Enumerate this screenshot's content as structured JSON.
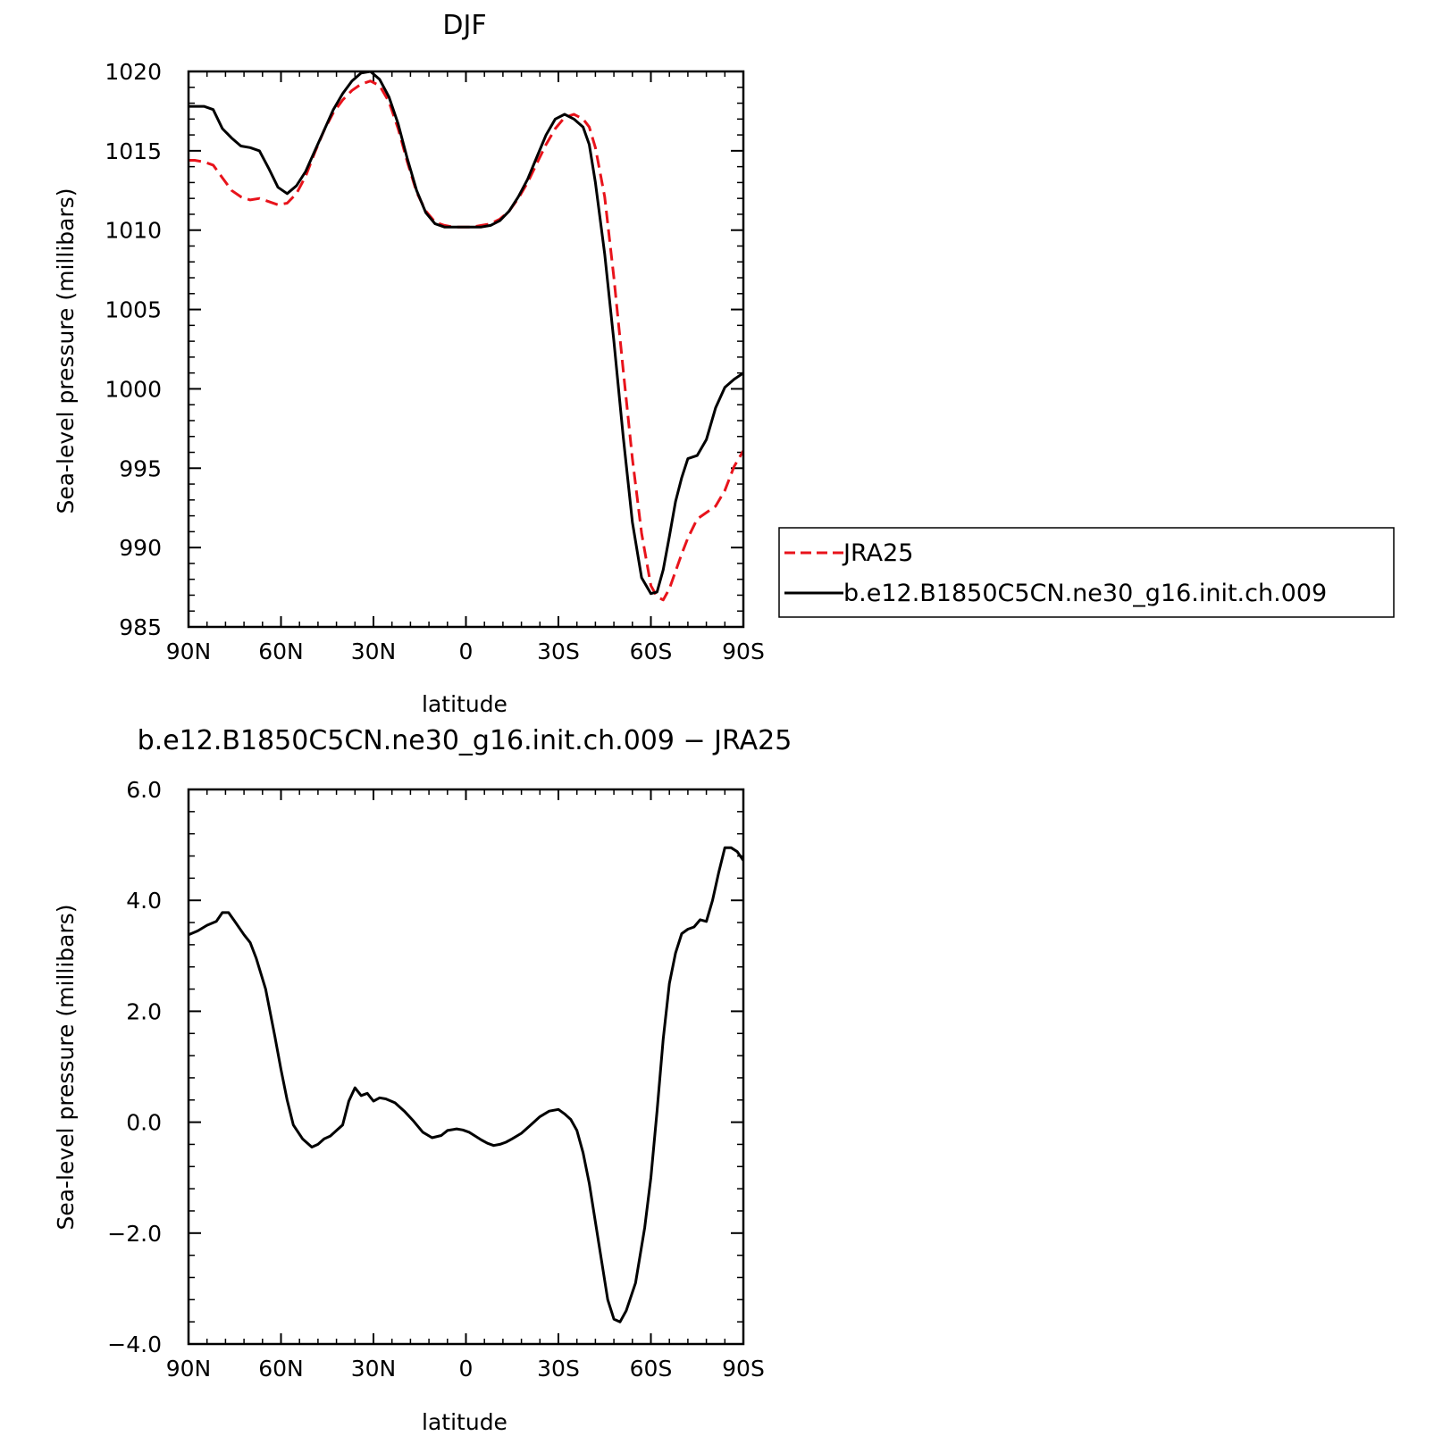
{
  "chart_data": [
    {
      "type": "line",
      "title": "DJF",
      "xlabel": "latitude",
      "ylabel": "Sea-level pressure (millibars)",
      "xlim": [
        90,
        -90
      ],
      "ylim": [
        985,
        1020
      ],
      "x_ticks": [
        {
          "value": 90,
          "label": "90N"
        },
        {
          "value": 60,
          "label": "60N"
        },
        {
          "value": 30,
          "label": "30N"
        },
        {
          "value": 0,
          "label": "0"
        },
        {
          "value": -30,
          "label": "30S"
        },
        {
          "value": -60,
          "label": "60S"
        },
        {
          "value": -90,
          "label": "90S"
        }
      ],
      "y_ticks": [
        {
          "value": 1020,
          "label": "1020"
        },
        {
          "value": 1015,
          "label": "1015"
        },
        {
          "value": 1010,
          "label": "1010"
        },
        {
          "value": 1005,
          "label": "1005"
        },
        {
          "value": 1000,
          "label": "1000"
        },
        {
          "value": 995,
          "label": "995"
        },
        {
          "value": 990,
          "label": "990"
        },
        {
          "value": 985,
          "label": "985"
        }
      ],
      "legend": {
        "position": "right"
      },
      "series": [
        {
          "name": "JRA25",
          "color": "#e8131b",
          "dash": true,
          "x": [
            90,
            88,
            85,
            82,
            79,
            76,
            73,
            70,
            67,
            64,
            61,
            58,
            55,
            52,
            49,
            46,
            43,
            40,
            37,
            34,
            31,
            28,
            25,
            22,
            19,
            16,
            13,
            10,
            7,
            4,
            1,
            -2,
            -5,
            -8,
            -11,
            -14,
            -17,
            -20,
            -23,
            -26,
            -29,
            -32,
            -35,
            -38,
            -40,
            -42,
            -45,
            -48,
            -51,
            -54,
            -57,
            -60,
            -62,
            -64,
            -66,
            -68,
            -70,
            -72,
            -75,
            -78,
            -81,
            -84,
            -87,
            -90
          ],
          "y": [
            1014.4,
            1014.4,
            1014.3,
            1014.1,
            1013.3,
            1012.5,
            1012.1,
            1011.9,
            1012.0,
            1011.8,
            1011.6,
            1011.7,
            1012.3,
            1013.4,
            1014.9,
            1016.3,
            1017.4,
            1018.2,
            1018.8,
            1019.2,
            1019.4,
            1019.1,
            1018.1,
            1016.4,
            1014.3,
            1012.4,
            1011.2,
            1010.5,
            1010.3,
            1010.2,
            1010.2,
            1010.2,
            1010.3,
            1010.4,
            1010.7,
            1011.2,
            1012.0,
            1013.0,
            1014.2,
            1015.4,
            1016.4,
            1017.1,
            1017.3,
            1017.0,
            1016.5,
            1015.2,
            1012.1,
            1007.0,
            1001.2,
            995.6,
            990.9,
            987.6,
            986.9,
            986.7,
            987.4,
            988.5,
            989.6,
            990.6,
            991.8,
            992.2,
            992.6,
            993.6,
            995.1,
            996.1
          ]
        },
        {
          "name": "b.e12.B1850C5CN.ne30_g16.init.ch.009",
          "color": "#000000",
          "dash": false,
          "x": [
            90,
            88,
            85,
            82,
            79,
            76,
            73,
            70,
            67,
            64,
            61,
            58,
            55,
            52,
            49,
            46,
            43,
            40,
            37,
            34,
            31,
            28,
            25,
            22,
            19,
            16,
            13,
            10,
            7,
            4,
            1,
            -2,
            -5,
            -8,
            -11,
            -14,
            -17,
            -20,
            -23,
            -26,
            -29,
            -32,
            -35,
            -38,
            -40,
            -42,
            -45,
            -48,
            -51,
            -54,
            -57,
            -60,
            -62,
            -64,
            -66,
            -68,
            -70,
            -72,
            -75,
            -78,
            -81,
            -84,
            -87,
            -90
          ],
          "y": [
            1017.8,
            1017.8,
            1017.8,
            1017.6,
            1016.4,
            1015.8,
            1015.3,
            1015.2,
            1015.0,
            1013.9,
            1012.7,
            1012.3,
            1012.8,
            1013.7,
            1015.0,
            1016.3,
            1017.6,
            1018.6,
            1019.4,
            1019.9,
            1020.0,
            1019.5,
            1018.4,
            1016.7,
            1014.5,
            1012.5,
            1011.1,
            1010.4,
            1010.2,
            1010.2,
            1010.2,
            1010.2,
            1010.2,
            1010.3,
            1010.6,
            1011.2,
            1012.1,
            1013.2,
            1014.6,
            1016.0,
            1017.0,
            1017.3,
            1017.0,
            1016.5,
            1015.4,
            1013.0,
            1008.5,
            1003.0,
            997.0,
            991.6,
            988.1,
            987.1,
            987.2,
            988.6,
            990.7,
            992.9,
            994.4,
            995.6,
            995.8,
            996.8,
            998.8,
            1000.1,
            1000.6,
            1001.0
          ]
        }
      ]
    },
    {
      "type": "line",
      "title": "b.e12.B1850C5CN.ne30_g16.init.ch.009 − JRA25",
      "xlabel": "latitude",
      "ylabel": "Sea-level pressure (millibars)",
      "xlim": [
        90,
        -90
      ],
      "ylim": [
        -4,
        6
      ],
      "x_ticks": [
        {
          "value": 90,
          "label": "90N"
        },
        {
          "value": 60,
          "label": "60N"
        },
        {
          "value": 30,
          "label": "30N"
        },
        {
          "value": 0,
          "label": "0"
        },
        {
          "value": -30,
          "label": "30S"
        },
        {
          "value": -60,
          "label": "60S"
        },
        {
          "value": -90,
          "label": "90S"
        }
      ],
      "y_ticks": [
        {
          "value": 6,
          "label": "6.0"
        },
        {
          "value": 4,
          "label": "4.0"
        },
        {
          "value": 2,
          "label": "2.0"
        },
        {
          "value": 0,
          "label": "0.0"
        },
        {
          "value": -2,
          "label": "−2.0"
        },
        {
          "value": -4,
          "label": "−4.0"
        }
      ],
      "series": [
        {
          "color": "#000000",
          "dash": false,
          "x": [
            90,
            87,
            84,
            81,
            79,
            77,
            75,
            72,
            70,
            68,
            65,
            62,
            60,
            58,
            56,
            53,
            50,
            48,
            46,
            44,
            42,
            40,
            38,
            36,
            34,
            32,
            30,
            28,
            26,
            23,
            20,
            17,
            14,
            11,
            8,
            6,
            3,
            1,
            -1,
            -3,
            -5,
            -7,
            -9,
            -11,
            -13,
            -15,
            -18,
            -21,
            -24,
            -27,
            -30,
            -32,
            -34,
            -36,
            -38,
            -40,
            -42,
            -44,
            -46,
            -48,
            -50,
            -52,
            -55,
            -58,
            -60,
            -62,
            -64,
            -66,
            -68,
            -70,
            -72,
            -74,
            -76,
            -78,
            -80,
            -82,
            -84,
            -86,
            -88,
            -90
          ],
          "y": [
            3.38,
            3.45,
            3.55,
            3.62,
            3.78,
            3.78,
            3.62,
            3.38,
            3.24,
            2.95,
            2.4,
            1.55,
            0.95,
            0.4,
            -0.05,
            -0.3,
            -0.45,
            -0.4,
            -0.3,
            -0.25,
            -0.15,
            -0.05,
            0.38,
            0.62,
            0.48,
            0.52,
            0.38,
            0.44,
            0.42,
            0.35,
            0.2,
            0.02,
            -0.18,
            -0.28,
            -0.24,
            -0.15,
            -0.12,
            -0.14,
            -0.18,
            -0.25,
            -0.32,
            -0.38,
            -0.42,
            -0.4,
            -0.36,
            -0.3,
            -0.2,
            -0.05,
            0.1,
            0.2,
            0.23,
            0.15,
            0.05,
            -0.15,
            -0.55,
            -1.1,
            -1.8,
            -2.5,
            -3.2,
            -3.55,
            -3.6,
            -3.4,
            -2.9,
            -1.9,
            -1.0,
            0.2,
            1.5,
            2.5,
            3.05,
            3.4,
            3.48,
            3.52,
            3.65,
            3.62,
            4.0,
            4.5,
            4.95,
            4.95,
            4.88,
            4.72
          ]
        }
      ]
    }
  ]
}
